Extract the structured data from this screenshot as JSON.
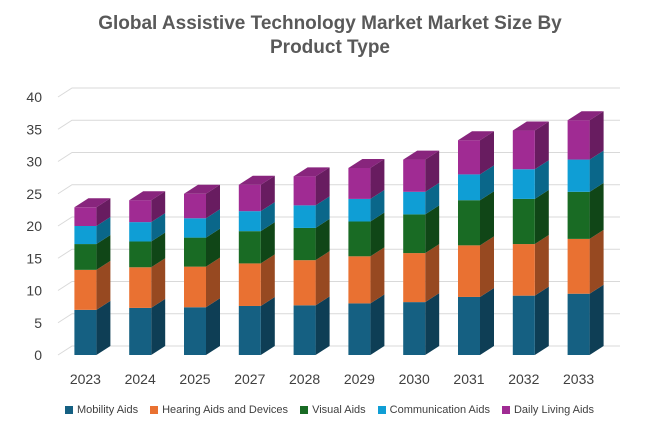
{
  "chart_data": {
    "type": "bar",
    "stacked": true,
    "three_d": true,
    "title": "Global Assistive Technology Market Market Size By Product Type",
    "xlabel": "",
    "ylabel": "",
    "ylim": [
      0,
      40
    ],
    "yticks": [
      0,
      5,
      10,
      15,
      20,
      25,
      30,
      35,
      40
    ],
    "categories": [
      "2023",
      "2024",
      "2025",
      "2027",
      "2028",
      "2029",
      "2030",
      "2031",
      "2032",
      "2033"
    ],
    "series": [
      {
        "name": "Mobility Aids",
        "color": "#156082",
        "values": [
          7.0,
          7.3,
          7.4,
          7.6,
          7.7,
          8.0,
          8.2,
          9.0,
          9.2,
          9.5
        ]
      },
      {
        "name": "Hearing Aids and Devices",
        "color": "#E97132",
        "values": [
          6.2,
          6.3,
          6.3,
          6.6,
          7.0,
          7.3,
          7.6,
          8.0,
          8.0,
          8.5
        ]
      },
      {
        "name": "Visual Aids",
        "color": "#196B24",
        "values": [
          4.0,
          4.0,
          4.5,
          5.0,
          5.0,
          5.4,
          6.0,
          7.0,
          7.0,
          7.3
        ]
      },
      {
        "name": "Communication Aids",
        "color": "#0F9ED5",
        "values": [
          2.8,
          3.0,
          3.0,
          3.1,
          3.5,
          3.5,
          3.5,
          4.0,
          4.6,
          5.0
        ]
      },
      {
        "name": "Daily Living Aids",
        "color": "#A02B93",
        "values": [
          2.9,
          3.4,
          3.8,
          4.1,
          4.5,
          4.8,
          5.0,
          5.3,
          6.0,
          6.1
        ]
      }
    ],
    "grid": true,
    "legend_position": "bottom"
  }
}
